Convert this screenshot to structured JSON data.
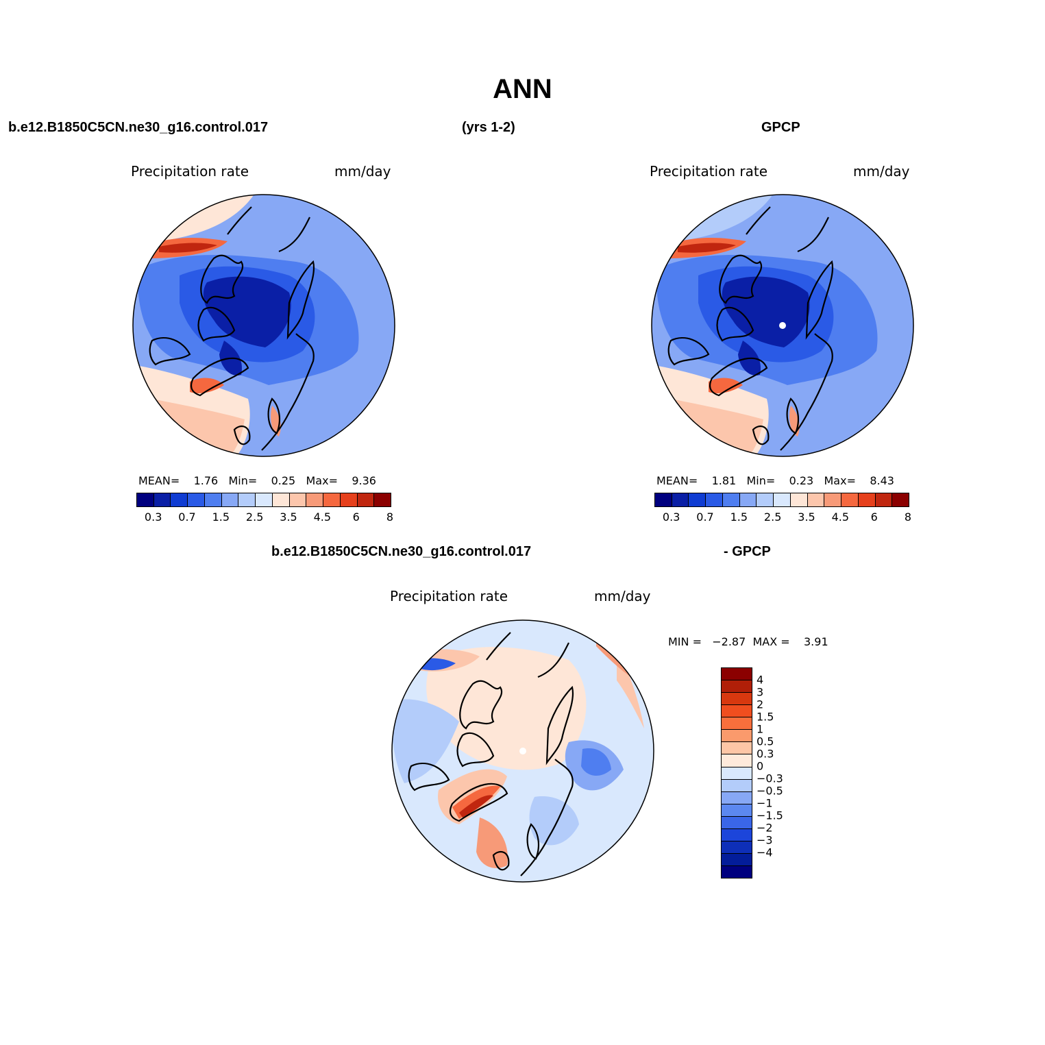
{
  "title": "ANN",
  "header": {
    "case_name": "b.e12.B1850C5CN.ne30_g16.control.017",
    "years": "(yrs 1-2)",
    "obs_name": "GPCP"
  },
  "panels": [
    {
      "id": "model",
      "left_label": "Precipitation rate",
      "right_label": "mm/day",
      "stats": {
        "mean_label": "MEAN=",
        "mean": "1.76",
        "min_label": "Min=",
        "min": "0.25",
        "max_label": "Max=",
        "max": "9.36"
      }
    },
    {
      "id": "obs",
      "left_label": "Precipitation rate",
      "right_label": "mm/day",
      "stats": {
        "mean_label": "MEAN=",
        "mean": "1.81",
        "min_label": "Min=",
        "min": "0.23",
        "max_label": "Max=",
        "max": "8.43"
      }
    },
    {
      "id": "diff",
      "left_label": "Precipitation rate",
      "right_label": "mm/day",
      "title_left": "b.e12.B1850C5CN.ne30_g16.control.017",
      "title_right": "- GPCP",
      "minmax": "MIN =   −2.87  MAX =    3.91"
    }
  ],
  "colorbar_abs": {
    "colors": [
      "#00007f",
      "#0a1fa6",
      "#0f3cd2",
      "#2a5ae6",
      "#4f7ef0",
      "#87a8f5",
      "#b3ccfa",
      "#d9e8fd",
      "#fee6d7",
      "#fcc6ac",
      "#f79a78",
      "#f5683f",
      "#e6401c",
      "#c0260f",
      "#8b0000"
    ],
    "tick_labels": [
      "0.3",
      "0.7",
      "1.5",
      "2.5",
      "3.5",
      "4.5",
      "6",
      "8"
    ]
  },
  "colorbar_diff": {
    "colors": [
      "#8b0000",
      "#b01f08",
      "#d8380f",
      "#f04e1f",
      "#f86f3c",
      "#fa9a6c",
      "#fdc6a6",
      "#feeadb",
      "#d9e8fd",
      "#b3ccfa",
      "#87a8f5",
      "#5c88f0",
      "#3a66e8",
      "#1c45da",
      "#0e2fb8",
      "#031d9a",
      "#00007f"
    ],
    "tick_labels": [
      "4",
      "3",
      "2",
      "1.5",
      "1",
      "0.5",
      "0.3",
      "0",
      "−0.3",
      "−0.5",
      "−1",
      "−1.5",
      "−2",
      "−3",
      "−4"
    ]
  },
  "map_palette": {
    "deep_blue": "#0a1fa6",
    "blue": "#2a5ae6",
    "mid_blue": "#4f7ef0",
    "light_blue": "#87a8f5",
    "pale_blue": "#b3ccfa",
    "very_pale_blue": "#d9e8fd",
    "cream": "#fee6d7",
    "peach": "#fcc6ac",
    "salmon": "#f79a78",
    "orange": "#f5683f",
    "red": "#c0260f"
  }
}
